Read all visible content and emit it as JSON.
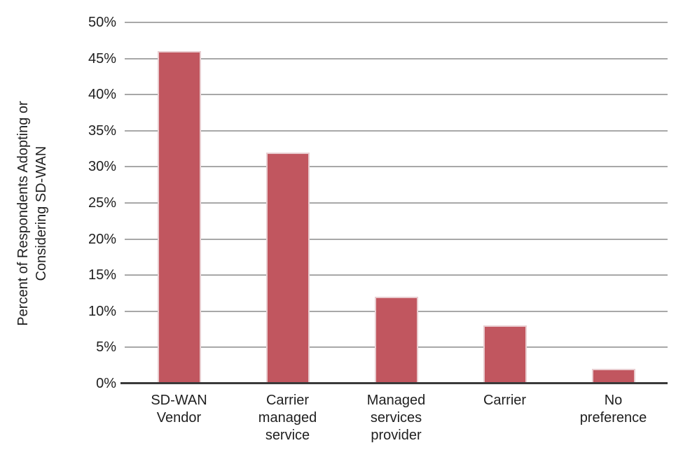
{
  "chart_data": {
    "type": "bar",
    "categories": [
      "SD-WAN Vendor",
      "Carrier managed service",
      "Managed services provider",
      "Carrier",
      "No preference"
    ],
    "category_label_lines": [
      [
        "SD-WAN",
        "Vendor"
      ],
      [
        "Carrier",
        "managed",
        "service"
      ],
      [
        "Managed",
        "services",
        "provider"
      ],
      [
        "Carrier"
      ],
      [
        "No",
        "preference"
      ]
    ],
    "values": [
      46,
      32,
      12,
      8,
      2
    ],
    "ylabel": "Percent of Respondents Adopting or Considering SD-WAN",
    "ylabel_lines": [
      "Percent of Respondents Adopting or",
      "Considering SD-WAN"
    ],
    "ylim": [
      0,
      50
    ],
    "ytick_step": 5,
    "ytick_labels": [
      "0%",
      "5%",
      "10%",
      "15%",
      "20%",
      "25%",
      "30%",
      "35%",
      "40%",
      "45%",
      "50%"
    ],
    "grid": true,
    "legend": "none",
    "colors": {
      "bar_fill": "#c1565f",
      "bar_border": "#e9cdd0",
      "gridline": "#a8a8a8",
      "axis_line": "#3a3a3a",
      "text": "#1f1f1f",
      "background": "#ffffff"
    }
  }
}
